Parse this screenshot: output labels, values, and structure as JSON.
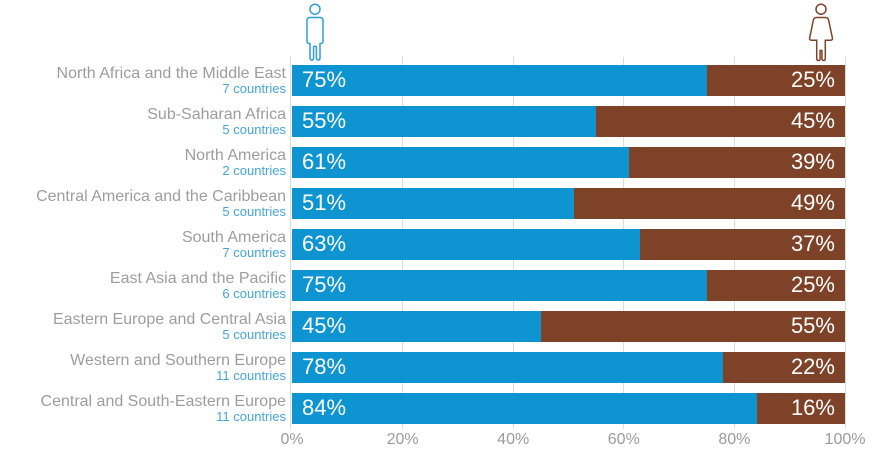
{
  "chart_data": {
    "type": "bar",
    "orientation": "horizontal-stacked",
    "categories": [
      "North Africa and the Middle East",
      "Sub-Saharan Africa",
      "North America",
      "Central America and the Caribbean",
      "South America",
      "East Asia and the Pacific",
      "Eastern Europe and Central Asia",
      "Western and Southern Europe",
      "Central and South-Eastern Europe"
    ],
    "subcategories": [
      "7 countries",
      "5 countries",
      "2 countries",
      "5 countries",
      "7 countries",
      "6 countries",
      "5 countries",
      "11 countries",
      "11 countries"
    ],
    "series": [
      {
        "name": "male",
        "color": "#0d94d1",
        "values": [
          75,
          55,
          61,
          51,
          63,
          75,
          45,
          78,
          84
        ]
      },
      {
        "name": "female",
        "color": "#7d4227",
        "values": [
          25,
          45,
          39,
          49,
          37,
          25,
          55,
          22,
          16
        ]
      }
    ],
    "xlim": [
      0,
      100
    ],
    "x_tick_labels": [
      "0%",
      "20%",
      "40%",
      "60%",
      "80%",
      "100%"
    ],
    "grid": "vertical",
    "legend": "male and female outline pictograms above bar ends",
    "value_labels": "percent shown in white inside each segment"
  },
  "rows": [
    {
      "region": "North Africa and the Middle East",
      "countries": "7 countries",
      "male": 75,
      "female": 25,
      "male_label": "75%",
      "female_label": "25%"
    },
    {
      "region": "Sub-Saharan Africa",
      "countries": "5 countries",
      "male": 55,
      "female": 45,
      "male_label": "55%",
      "female_label": "45%"
    },
    {
      "region": "North America",
      "countries": "2 countries",
      "male": 61,
      "female": 39,
      "male_label": "61%",
      "female_label": "39%"
    },
    {
      "region": "Central America and the Caribbean",
      "countries": "5 countries",
      "male": 51,
      "female": 49,
      "male_label": "51%",
      "female_label": "49%"
    },
    {
      "region": "South America",
      "countries": "7 countries",
      "male": 63,
      "female": 37,
      "male_label": "63%",
      "female_label": "37%"
    },
    {
      "region": "East Asia and the Pacific",
      "countries": "6 countries",
      "male": 75,
      "female": 25,
      "male_label": "75%",
      "female_label": "25%"
    },
    {
      "region": "Eastern Europe and Central Asia",
      "countries": "5 countries",
      "male": 45,
      "female": 55,
      "male_label": "45%",
      "female_label": "55%"
    },
    {
      "region": "Western and Southern Europe",
      "countries": "11 countries",
      "male": 78,
      "female": 22,
      "male_label": "78%",
      "female_label": "22%"
    },
    {
      "region": "Central and South-Eastern Europe",
      "countries": "11 countries",
      "male": 84,
      "female": 16,
      "male_label": "84%",
      "female_label": "16%"
    }
  ],
  "axis": {
    "ticks": [
      "0%",
      "20%",
      "40%",
      "60%",
      "80%",
      "100%"
    ]
  },
  "icons": {
    "male": "man-icon",
    "female": "woman-icon"
  },
  "colors": {
    "male_bar": "#0d94d1",
    "female_bar": "#7d4227",
    "male_icon_stroke": "#2e9fd8",
    "female_icon_stroke": "#7d4227",
    "region_text": "#9d9d9d",
    "countries_text": "#45a5db",
    "axis_text": "#9b9b9b",
    "gridline": "#dcdcdc",
    "bar_value_text": "#ffffff"
  }
}
